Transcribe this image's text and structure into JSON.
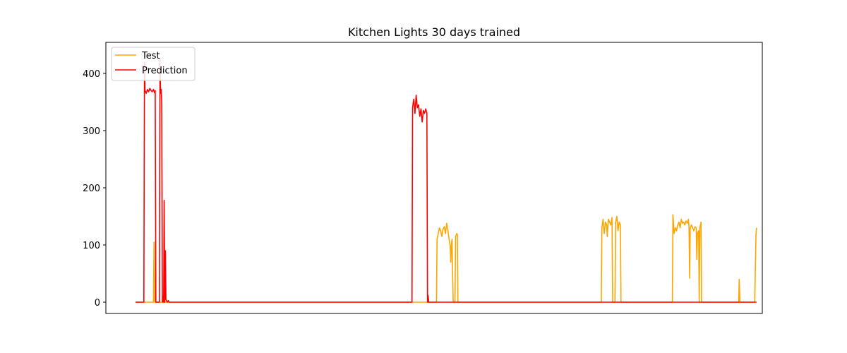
{
  "chart_data": {
    "type": "line",
    "title": "Kitchen Lights 30 days trained",
    "xlabel": "",
    "ylabel": "",
    "x_ticks_visible": false,
    "xlim": [
      0,
      1000
    ],
    "ylim": [
      -20,
      450
    ],
    "yticks": [
      0,
      100,
      200,
      300,
      400
    ],
    "legend": {
      "position": "top-left"
    },
    "grid": false,
    "series": [
      {
        "name": "Test",
        "color": "#ffa500",
        "points": [
          [
            0,
            0
          ],
          [
            30,
            0
          ],
          [
            31,
            105
          ],
          [
            32,
            0
          ],
          [
            497,
            0
          ],
          [
            504,
            0
          ],
          [
            505,
            110
          ],
          [
            507,
            120
          ],
          [
            509,
            130
          ],
          [
            511,
            125
          ],
          [
            513,
            115
          ],
          [
            515,
            128
          ],
          [
            517,
            132
          ],
          [
            519,
            120
          ],
          [
            521,
            138
          ],
          [
            523,
            126
          ],
          [
            525,
            110
          ],
          [
            527,
            98
          ],
          [
            528,
            70
          ],
          [
            529,
            100
          ],
          [
            530,
            110
          ],
          [
            531,
            50
          ],
          [
            532,
            0
          ],
          [
            535,
            0
          ],
          [
            536,
            115
          ],
          [
            538,
            120
          ],
          [
            539,
            118
          ],
          [
            540,
            0
          ],
          [
            780,
            0
          ],
          [
            781,
            130
          ],
          [
            783,
            145
          ],
          [
            785,
            120
          ],
          [
            787,
            140
          ],
          [
            789,
            135
          ],
          [
            790,
            115
          ],
          [
            792,
            145
          ],
          [
            794,
            140
          ],
          [
            796,
            135
          ],
          [
            798,
            148
          ],
          [
            799,
            0
          ],
          [
            803,
            0
          ],
          [
            804,
            140
          ],
          [
            806,
            150
          ],
          [
            808,
            125
          ],
          [
            810,
            140
          ],
          [
            812,
            135
          ],
          [
            813,
            0
          ],
          [
            899,
            0
          ],
          [
            900,
            153
          ],
          [
            902,
            120
          ],
          [
            904,
            130
          ],
          [
            906,
            125
          ],
          [
            908,
            135
          ],
          [
            910,
            140
          ],
          [
            912,
            130
          ],
          [
            914,
            145
          ],
          [
            916,
            138
          ],
          [
            918,
            140
          ],
          [
            920,
            135
          ],
          [
            922,
            142
          ],
          [
            924,
            138
          ],
          [
            926,
            145
          ],
          [
            927,
            130
          ],
          [
            928,
            42
          ],
          [
            929,
            130
          ],
          [
            931,
            135
          ],
          [
            933,
            130
          ],
          [
            935,
            125
          ],
          [
            937,
            132
          ],
          [
            939,
            130
          ],
          [
            940,
            75
          ],
          [
            941,
            120
          ],
          [
            943,
            125
          ],
          [
            944,
            0
          ],
          [
            945,
            130
          ],
          [
            947,
            140
          ],
          [
            948,
            0
          ],
          [
            1010,
            0
          ],
          [
            1011,
            40
          ],
          [
            1012,
            0
          ],
          [
            1037,
            0
          ],
          [
            1039,
            115
          ],
          [
            1040,
            130
          ]
        ]
      },
      {
        "name": "Prediction",
        "color": "#ff0000",
        "points": [
          [
            0,
            0
          ],
          [
            14,
            0
          ],
          [
            15,
            420
          ],
          [
            16,
            370
          ],
          [
            18,
            365
          ],
          [
            20,
            372
          ],
          [
            22,
            368
          ],
          [
            24,
            374
          ],
          [
            26,
            370
          ],
          [
            28,
            368
          ],
          [
            30,
            372
          ],
          [
            32,
            366
          ],
          [
            33,
            370
          ],
          [
            34,
            0
          ],
          [
            40,
            0
          ],
          [
            41,
            425
          ],
          [
            42,
            365
          ],
          [
            43,
            372
          ],
          [
            44,
            345
          ],
          [
            45,
            0
          ],
          [
            46,
            10
          ],
          [
            47,
            0
          ],
          [
            48,
            178
          ],
          [
            49,
            0
          ],
          [
            50,
            90
          ],
          [
            51,
            5
          ],
          [
            53,
            0
          ],
          [
            55,
            3
          ],
          [
            56,
            0
          ],
          [
            463,
            0
          ],
          [
            464,
            340
          ],
          [
            466,
            355
          ],
          [
            468,
            330
          ],
          [
            470,
            362
          ],
          [
            472,
            340
          ],
          [
            474,
            345
          ],
          [
            476,
            325
          ],
          [
            478,
            338
          ],
          [
            480,
            315
          ],
          [
            482,
            335
          ],
          [
            484,
            330
          ],
          [
            486,
            338
          ],
          [
            488,
            330
          ],
          [
            489,
            0
          ],
          [
            490,
            12
          ],
          [
            491,
            0
          ],
          [
            1040,
            0
          ]
        ]
      }
    ]
  }
}
